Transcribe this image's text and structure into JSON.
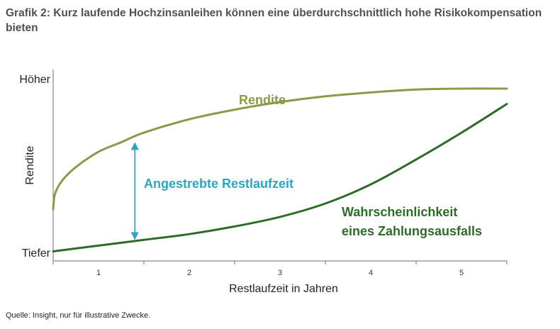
{
  "title": "Grafik 2: Kurz laufende Hochzinsanleihen können eine überdurchschnittlich hohe Risikokompensation bieten",
  "source": "Quelle: Insight, nur für illustrative Zwecke.",
  "colors": {
    "rendite": "#8b9a46",
    "ausfall": "#2e6b2a",
    "arrow": "#2aa7c2",
    "axis": "#6e6e6e"
  },
  "chart_data": {
    "type": "line",
    "xlabel": "Restlaufzeit in Jahren",
    "ylabel": "Rendite",
    "y_top_label": "Höher",
    "y_bottom_label": "Tiefer",
    "xlim": [
      0.5,
      5.5
    ],
    "ylim": [
      0,
      100
    ],
    "x_ticks": [
      1,
      2,
      3,
      4,
      5
    ],
    "grid": false,
    "series": [
      {
        "name": "Rendite",
        "color": "#8b9a46",
        "x": [
          0.5,
          0.52,
          0.6,
          0.75,
          1.0,
          1.25,
          1.5,
          2.0,
          2.5,
          3.0,
          3.5,
          4.0,
          4.5,
          5.0,
          5.5
        ],
        "y": [
          27,
          35,
          42,
          49,
          57,
          62,
          67,
          74,
          79,
          83,
          86,
          88,
          89.5,
          90,
          90
        ]
      },
      {
        "name": "Wahrscheinlichkeit eines Zahlungsausfalls",
        "color": "#2e6b2a",
        "x": [
          0.5,
          1.0,
          1.5,
          2.0,
          2.5,
          3.0,
          3.5,
          4.0,
          4.5,
          5.0,
          5.5
        ],
        "y": [
          5,
          8,
          11,
          14,
          18,
          23,
          30,
          40,
          53,
          67,
          82
        ]
      }
    ],
    "annotations": [
      {
        "text": "Angestrebte Restlaufzeit",
        "x": 1.4,
        "y_from": 13,
        "y_to": 60
      }
    ]
  }
}
